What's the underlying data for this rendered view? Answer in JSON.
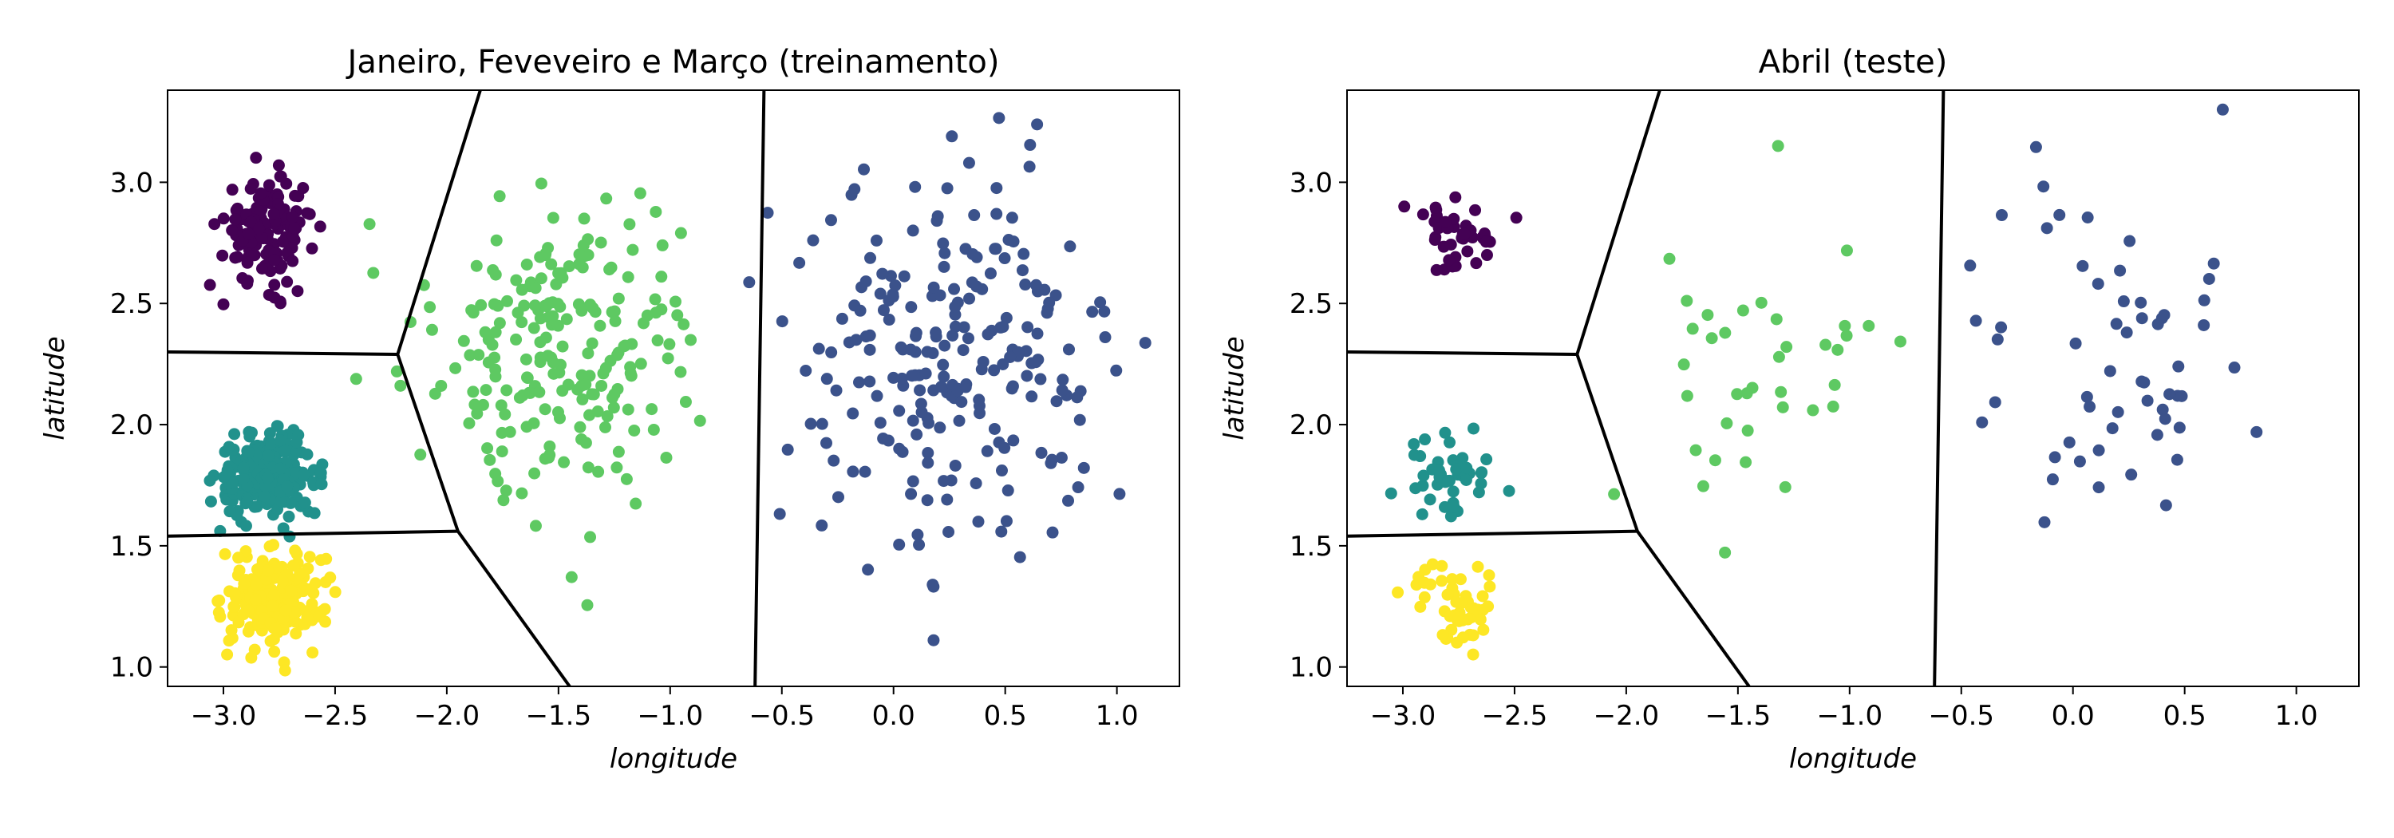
{
  "chart_data": [
    {
      "type": "scatter",
      "title": "Janeiro, Feveveiro e Março (treinamento)",
      "xlabel": "longitude",
      "ylabel": "latitude",
      "xlim": [
        -3.25,
        1.28
      ],
      "ylim": [
        0.92,
        3.38
      ],
      "xticks": [
        "−3.0",
        "−2.5",
        "−2.0",
        "−1.5",
        "−1.0",
        "−0.5",
        "0.0",
        "0.5",
        "1.0"
      ],
      "xtick_values": [
        -3.0,
        -2.5,
        -2.0,
        -1.5,
        -1.0,
        -0.5,
        0.0,
        0.5,
        1.0
      ],
      "yticks": [
        "1.0",
        "1.5",
        "2.0",
        "2.5",
        "3.0"
      ],
      "ytick_values": [
        1.0,
        1.5,
        2.0,
        2.5,
        3.0
      ],
      "grid": false,
      "clusters": [
        {
          "color": "#440154",
          "center": [
            -2.8,
            2.8
          ],
          "spread": [
            0.1,
            0.11
          ],
          "count": 150
        },
        {
          "color": "#21918c",
          "center": [
            -2.8,
            1.79
          ],
          "spread": [
            0.11,
            0.08
          ],
          "count": 230
        },
        {
          "color": "#fde725",
          "center": [
            -2.78,
            1.28
          ],
          "spread": [
            0.11,
            0.1
          ],
          "count": 200
        },
        {
          "color": "#5ec962",
          "center": [
            -1.45,
            2.33
          ],
          "spread": [
            0.3,
            0.32
          ],
          "count": 220
        },
        {
          "color": "#3b528b",
          "center": [
            0.28,
            2.25
          ],
          "spread": [
            0.34,
            0.38
          ],
          "count": 230
        }
      ],
      "boundaries": [
        [
          [
            -3.25,
            2.3
          ],
          [
            -2.22,
            2.29
          ]
        ],
        [
          [
            -2.22,
            2.29
          ],
          [
            -1.85,
            3.38
          ]
        ],
        [
          [
            -2.22,
            2.29
          ],
          [
            -1.95,
            1.56
          ]
        ],
        [
          [
            -3.25,
            1.54
          ],
          [
            -1.95,
            1.56
          ]
        ],
        [
          [
            -1.95,
            1.56
          ],
          [
            -1.45,
            0.92
          ]
        ],
        [
          [
            -0.58,
            3.38
          ],
          [
            -0.62,
            0.92
          ]
        ]
      ]
    },
    {
      "type": "scatter",
      "title": "Abril (teste)",
      "xlabel": "longitude",
      "ylabel": "latitude",
      "xlim": [
        -3.25,
        1.28
      ],
      "ylim": [
        0.92,
        3.38
      ],
      "xticks": [
        "−3.0",
        "−2.5",
        "−2.0",
        "−1.5",
        "−1.0",
        "−0.5",
        "0.0",
        "0.5",
        "1.0"
      ],
      "xtick_values": [
        -3.0,
        -2.5,
        -2.0,
        -1.5,
        -1.0,
        -0.5,
        0.0,
        0.5,
        1.0
      ],
      "yticks": [
        "1.0",
        "1.5",
        "2.0",
        "2.5",
        "3.0"
      ],
      "ytick_values": [
        1.0,
        1.5,
        2.0,
        2.5,
        3.0
      ],
      "grid": false,
      "clusters": [
        {
          "color": "#440154",
          "center": [
            -2.75,
            2.79
          ],
          "spread": [
            0.1,
            0.09
          ],
          "count": 40
        },
        {
          "color": "#21918c",
          "center": [
            -2.8,
            1.8
          ],
          "spread": [
            0.1,
            0.1
          ],
          "count": 45
        },
        {
          "color": "#fde725",
          "center": [
            -2.78,
            1.28
          ],
          "spread": [
            0.1,
            0.09
          ],
          "count": 50
        },
        {
          "color": "#5ec962",
          "center": [
            -1.42,
            2.28
          ],
          "spread": [
            0.3,
            0.35
          ],
          "count": 38
        },
        {
          "color": "#3b528b",
          "center": [
            0.2,
            2.3
          ],
          "spread": [
            0.33,
            0.4
          ],
          "count": 58
        }
      ],
      "boundaries": [
        [
          [
            -3.25,
            2.3
          ],
          [
            -2.22,
            2.29
          ]
        ],
        [
          [
            -2.22,
            2.29
          ],
          [
            -1.85,
            3.38
          ]
        ],
        [
          [
            -2.22,
            2.29
          ],
          [
            -1.95,
            1.56
          ]
        ],
        [
          [
            -3.25,
            1.54
          ],
          [
            -1.95,
            1.56
          ]
        ],
        [
          [
            -1.95,
            1.56
          ],
          [
            -1.45,
            0.92
          ]
        ],
        [
          [
            -0.58,
            3.38
          ],
          [
            -0.62,
            0.92
          ]
        ]
      ]
    }
  ]
}
